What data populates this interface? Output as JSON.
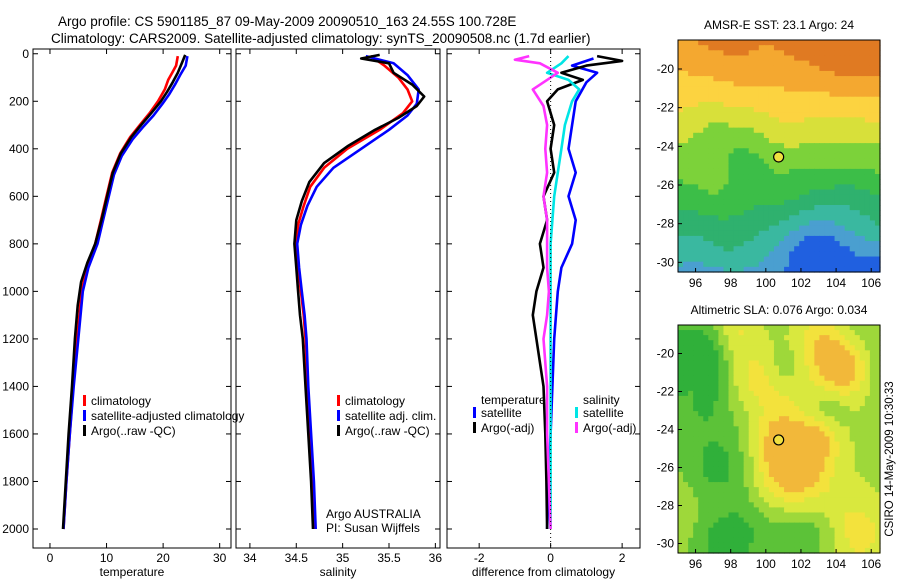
{
  "header": {
    "line1": "Argo profile: CS 5901185_87 09-May-2009 20090510_163 24.55S 100.728E",
    "line2": "Climatology: CARS2009. Satellite-adjusted climatology: synTS_20090508.nc (1.7d earlier)"
  },
  "footer": {
    "credit": "CSIRO 14-May-2009 10:30:33"
  },
  "colors": {
    "climatology": "#ff0000",
    "satellite": "#0000ff",
    "argo": "#000000",
    "satellite_salinity": "#00e5e5",
    "argo_salinity_adj": "#ff33ff"
  },
  "chart_data": [
    {
      "id": "temperature",
      "type": "line",
      "xlabel": "temperature",
      "ylabel": "",
      "xlim": [
        -3,
        32
      ],
      "ylim": [
        2080,
        -20
      ],
      "xticks": [
        0,
        10,
        20,
        30
      ],
      "xticklabels": [
        "0",
        "10",
        "20",
        "30"
      ],
      "yticks": [
        0,
        200,
        400,
        600,
        800,
        1000,
        1200,
        1400,
        1600,
        1800,
        2000
      ],
      "yticklabels": [
        "0",
        "200",
        "400",
        "600",
        "800",
        "1000",
        "1200",
        "1400",
        "1600",
        "1800",
        "2000"
      ],
      "legend": {
        "position": "lower-right",
        "entries": [
          "climatology",
          "satellite-adjusted climatology",
          "Argo(..raw -QC)"
        ]
      },
      "series": [
        {
          "name": "climatology",
          "color": "#ff0000",
          "points": [
            [
              22.6,
              10
            ],
            [
              22.3,
              50
            ],
            [
              21.6,
              80
            ],
            [
              20.9,
              110
            ],
            [
              20.3,
              150
            ],
            [
              19.1,
              200
            ],
            [
              17.6,
              250
            ],
            [
              15.9,
              300
            ],
            [
              14.2,
              350
            ],
            [
              12.4,
              420
            ],
            [
              11.0,
              500
            ],
            [
              10.0,
              600
            ],
            [
              9.0,
              700
            ],
            [
              8.0,
              800
            ],
            [
              6.5,
              900
            ],
            [
              5.6,
              1000
            ],
            [
              4.8,
              1200
            ],
            [
              4.1,
              1400
            ],
            [
              3.5,
              1600
            ],
            [
              2.9,
              1800
            ],
            [
              2.4,
              2000
            ]
          ]
        },
        {
          "name": "satellite-adjusted climatology",
          "color": "#0000ff",
          "points": [
            [
              24.3,
              10
            ],
            [
              24.0,
              50
            ],
            [
              23.0,
              90
            ],
            [
              22.1,
              130
            ],
            [
              21.1,
              170
            ],
            [
              19.9,
              210
            ],
            [
              18.3,
              260
            ],
            [
              16.4,
              310
            ],
            [
              14.6,
              360
            ],
            [
              12.7,
              430
            ],
            [
              11.3,
              510
            ],
            [
              10.4,
              600
            ],
            [
              9.4,
              700
            ],
            [
              8.4,
              800
            ],
            [
              6.8,
              900
            ],
            [
              5.8,
              1000
            ],
            [
              5.0,
              1200
            ],
            [
              4.2,
              1400
            ],
            [
              3.5,
              1600
            ],
            [
              2.9,
              1800
            ],
            [
              2.4,
              2000
            ]
          ]
        },
        {
          "name": "Argo(..raw -QC)",
          "color": "#000000",
          "points": [
            [
              23.9,
              5
            ],
            [
              23.3,
              40
            ],
            [
              22.6,
              80
            ],
            [
              21.7,
              120
            ],
            [
              20.7,
              160
            ],
            [
              19.6,
              200
            ],
            [
              17.9,
              250
            ],
            [
              16.1,
              300
            ],
            [
              14.4,
              350
            ],
            [
              12.5,
              420
            ],
            [
              11.1,
              500
            ],
            [
              10.1,
              600
            ],
            [
              9.1,
              700
            ],
            [
              8.0,
              800
            ],
            [
              6.6,
              880
            ],
            [
              5.5,
              960
            ],
            [
              4.9,
              1060
            ],
            [
              4.4,
              1200
            ],
            [
              3.9,
              1400
            ],
            [
              3.3,
              1600
            ],
            [
              2.8,
              1800
            ],
            [
              2.3,
              2000
            ]
          ]
        }
      ]
    },
    {
      "id": "salinity",
      "type": "line",
      "xlabel": "salinity",
      "xlim": [
        33.85,
        36.05
      ],
      "ylim": [
        2080,
        -20
      ],
      "xticks": [
        34,
        34.5,
        35,
        35.5,
        36
      ],
      "xticklabels": [
        "34",
        "34.5",
        "35",
        "35.5",
        "36"
      ],
      "legend": {
        "position": "lower-right",
        "entries": [
          "climatology",
          "satellite adj. clim.",
          "Argo(..raw -QC)"
        ]
      },
      "annotations": [
        "Argo AUSTRALIA",
        "PI: Susan Wijffels"
      ],
      "series": [
        {
          "name": "climatology",
          "color": "#ff0000",
          "points": [
            [
              35.3,
              10
            ],
            [
              35.45,
              50
            ],
            [
              35.6,
              100
            ],
            [
              35.7,
              150
            ],
            [
              35.75,
              200
            ],
            [
              35.65,
              250
            ],
            [
              35.4,
              320
            ],
            [
              35.05,
              400
            ],
            [
              34.8,
              480
            ],
            [
              34.65,
              560
            ],
            [
              34.58,
              640
            ],
            [
              34.52,
              720
            ],
            [
              34.5,
              800
            ],
            [
              34.52,
              900
            ],
            [
              34.55,
              1000
            ],
            [
              34.58,
              1100
            ],
            [
              34.6,
              1200
            ],
            [
              34.62,
              1400
            ],
            [
              34.65,
              1600
            ],
            [
              34.68,
              1800
            ],
            [
              34.7,
              2000
            ]
          ]
        },
        {
          "name": "satellite adj. clim.",
          "color": "#0000ff",
          "points": [
            [
              35.25,
              10
            ],
            [
              35.55,
              40
            ],
            [
              35.7,
              90
            ],
            [
              35.82,
              150
            ],
            [
              35.8,
              210
            ],
            [
              35.7,
              260
            ],
            [
              35.5,
              320
            ],
            [
              35.2,
              400
            ],
            [
              34.9,
              480
            ],
            [
              34.72,
              560
            ],
            [
              34.62,
              640
            ],
            [
              34.55,
              720
            ],
            [
              34.51,
              800
            ],
            [
              34.53,
              900
            ],
            [
              34.56,
              1000
            ],
            [
              34.59,
              1100
            ],
            [
              34.61,
              1200
            ],
            [
              34.63,
              1400
            ],
            [
              34.66,
              1600
            ],
            [
              34.69,
              1800
            ],
            [
              34.71,
              2000
            ]
          ]
        },
        {
          "name": "Argo(..raw -QC)",
          "color": "#000000",
          "points": [
            [
              35.4,
              5
            ],
            [
              35.2,
              20
            ],
            [
              35.5,
              40
            ],
            [
              35.55,
              80
            ],
            [
              35.75,
              130
            ],
            [
              35.88,
              180
            ],
            [
              35.8,
              220
            ],
            [
              35.6,
              270
            ],
            [
              35.35,
              320
            ],
            [
              35.05,
              390
            ],
            [
              34.8,
              460
            ],
            [
              34.64,
              540
            ],
            [
              34.56,
              620
            ],
            [
              34.5,
              700
            ],
            [
              34.48,
              800
            ],
            [
              34.5,
              900
            ],
            [
              34.52,
              1000
            ],
            [
              34.54,
              1100
            ],
            [
              34.57,
              1200
            ],
            [
              34.6,
              1400
            ],
            [
              34.63,
              1600
            ],
            [
              34.66,
              1800
            ],
            [
              34.68,
              2000
            ]
          ]
        }
      ]
    },
    {
      "id": "difference",
      "type": "line",
      "xlabel": "difference from climatology",
      "xlim": [
        -2.9,
        2.5
      ],
      "ylim": [
        2080,
        -20
      ],
      "xticks": [
        -2,
        0,
        2
      ],
      "xticklabels": [
        "-2",
        "0",
        "2"
      ],
      "legend": {
        "position": "lower-center",
        "groups": [
          {
            "title": "temperature",
            "entries": [
              "satellite",
              "Argo(-adj)"
            ]
          },
          {
            "title": "salinity",
            "entries": [
              "satellite",
              "Argo(-adj)"
            ]
          }
        ]
      },
      "series": [
        {
          "name": "temperature satellite",
          "color": "#0000ff",
          "points": [
            [
              1.2,
              20
            ],
            [
              0.6,
              50
            ],
            [
              1.3,
              80
            ],
            [
              1.0,
              120
            ],
            [
              0.7,
              200
            ],
            [
              0.6,
              300
            ],
            [
              0.5,
              400
            ],
            [
              0.7,
              500
            ],
            [
              0.5,
              600
            ],
            [
              0.7,
              700
            ],
            [
              0.6,
              800
            ],
            [
              0.3,
              900
            ],
            [
              0.2,
              1000
            ],
            [
              0.1,
              1200
            ],
            [
              0.05,
              1400
            ],
            [
              0.0,
              1600
            ],
            [
              -0.05,
              1800
            ],
            [
              -0.1,
              2000
            ]
          ]
        },
        {
          "name": "temperature Argo(-adj)",
          "color": "#000000",
          "points": [
            [
              1.3,
              10
            ],
            [
              2.0,
              30
            ],
            [
              1.0,
              50
            ],
            [
              0.3,
              80
            ],
            [
              0.9,
              110
            ],
            [
              0.2,
              150
            ],
            [
              -0.1,
              200
            ],
            [
              0.1,
              300
            ],
            [
              0.0,
              400
            ],
            [
              0.1,
              500
            ],
            [
              -0.2,
              600
            ],
            [
              -0.1,
              700
            ],
            [
              -0.3,
              800
            ],
            [
              -0.2,
              900
            ],
            [
              -0.4,
              1000
            ],
            [
              -0.5,
              1100
            ],
            [
              -0.4,
              1200
            ],
            [
              -0.2,
              1400
            ],
            [
              -0.15,
              1600
            ],
            [
              -0.12,
              1800
            ],
            [
              -0.1,
              2000
            ]
          ]
        },
        {
          "name": "salinity satellite",
          "color": "#00e5e5",
          "points": [
            [
              0.5,
              10
            ],
            [
              0.3,
              40
            ],
            [
              -0.1,
              80
            ],
            [
              0.5,
              110
            ],
            [
              0.8,
              150
            ],
            [
              0.6,
              200
            ],
            [
              0.4,
              300
            ],
            [
              0.3,
              400
            ],
            [
              0.2,
              500
            ],
            [
              0.1,
              600
            ],
            [
              0.05,
              700
            ],
            [
              0.0,
              800
            ],
            [
              0.0,
              1000
            ],
            [
              0.0,
              1200
            ],
            [
              0.0,
              1400
            ],
            [
              0.0,
              1600
            ],
            [
              0.0,
              1800
            ],
            [
              0.0,
              2000
            ]
          ]
        },
        {
          "name": "salinity Argo(-adj)",
          "color": "#ff33ff",
          "points": [
            [
              -0.6,
              10
            ],
            [
              -1.0,
              25
            ],
            [
              -0.3,
              40
            ],
            [
              0.2,
              80
            ],
            [
              -0.5,
              150
            ],
            [
              -0.2,
              220
            ],
            [
              -0.1,
              300
            ],
            [
              -0.15,
              400
            ],
            [
              -0.1,
              500
            ],
            [
              -0.2,
              600
            ],
            [
              -0.1,
              700
            ],
            [
              -0.1,
              800
            ],
            [
              -0.1,
              900
            ],
            [
              -0.05,
              1000
            ],
            [
              -0.1,
              1100
            ],
            [
              -0.2,
              1200
            ],
            [
              -0.1,
              1400
            ],
            [
              -0.1,
              1600
            ],
            [
              -0.05,
              1800
            ],
            [
              0.0,
              2000
            ]
          ]
        }
      ]
    },
    {
      "id": "sst-map",
      "type": "heatmap",
      "title": "AMSR-E SST: 23.1  Argo: 24",
      "xlim": [
        95,
        106.5
      ],
      "ylim": [
        -30.5,
        -18.5
      ],
      "xticks": [
        96,
        98,
        100,
        102,
        104,
        106
      ],
      "xticklabels": [
        "96",
        "98",
        "100",
        "102",
        "104",
        "106"
      ],
      "yticks": [
        -20,
        -22,
        -24,
        -26,
        -28,
        -30
      ],
      "yticklabels": [
        "-20",
        "-22",
        "-24",
        "-26",
        "-28",
        "-30"
      ],
      "marker": {
        "lon": 100.73,
        "lat": -24.55
      },
      "colors": [
        "#e07a22",
        "#f4a830",
        "#fcd340",
        "#d8e03a",
        "#7cd23a",
        "#3cbe48",
        "#2fb16e",
        "#3ab8a0",
        "#4a9fd0",
        "#2060e0"
      ]
    },
    {
      "id": "sla-map",
      "type": "heatmap",
      "title": "Altimetric SLA: 0.076  Argo: 0.034",
      "xlim": [
        95,
        106.5
      ],
      "ylim": [
        -30.5,
        -18.5
      ],
      "xticks": [
        96,
        98,
        100,
        102,
        104,
        106
      ],
      "xticklabels": [
        "96",
        "98",
        "100",
        "102",
        "104",
        "106"
      ],
      "yticks": [
        -20,
        -22,
        -24,
        -26,
        -28,
        -30
      ],
      "yticklabels": [
        "-20",
        "-22",
        "-24",
        "-26",
        "-28",
        "-30"
      ],
      "marker": {
        "lon": 100.73,
        "lat": -24.55
      },
      "colors": [
        "#30b03a",
        "#5cc238",
        "#9ed83a",
        "#d9e83e",
        "#f3e23c",
        "#f2b83a"
      ]
    }
  ]
}
